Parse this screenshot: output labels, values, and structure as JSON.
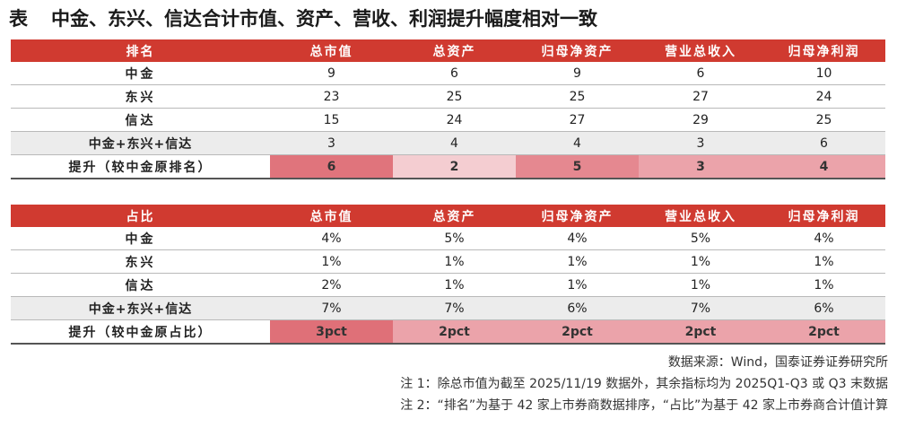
{
  "title": {
    "lead": "表",
    "text": "中金、东兴、信达合计市值、资产、营收、利润提升幅度相对一致"
  },
  "rank_table": {
    "headers": [
      "排名",
      "总市值",
      "总资产",
      "归母净资产",
      "营业总收入",
      "归母净利润"
    ],
    "rows": [
      {
        "label": "中金",
        "values": [
          "9",
          "6",
          "9",
          "6",
          "10"
        ]
      },
      {
        "label": "东兴",
        "values": [
          "23",
          "25",
          "25",
          "27",
          "24"
        ]
      },
      {
        "label": "信达",
        "values": [
          "15",
          "24",
          "27",
          "29",
          "25"
        ]
      },
      {
        "label": "中金+东兴+信达",
        "values": [
          "3",
          "4",
          "4",
          "3",
          "6"
        ]
      }
    ],
    "lift": {
      "label": "提升（较中金原排名）",
      "values": [
        "6",
        "2",
        "5",
        "3",
        "4"
      ],
      "colors": [
        "#e0747c",
        "#f4cdd1",
        "#e58890",
        "#eba3aa",
        "#eba3aa"
      ]
    }
  },
  "share_table": {
    "headers": [
      "占比",
      "总市值",
      "总资产",
      "归母净资产",
      "营业总收入",
      "归母净利润"
    ],
    "rows": [
      {
        "label": "中金",
        "values": [
          "4%",
          "5%",
          "4%",
          "5%",
          "4%"
        ]
      },
      {
        "label": "东兴",
        "values": [
          "1%",
          "1%",
          "1%",
          "1%",
          "1%"
        ]
      },
      {
        "label": "信达",
        "values": [
          "2%",
          "1%",
          "1%",
          "1%",
          "1%"
        ]
      },
      {
        "label": "中金+东兴+信达",
        "values": [
          "7%",
          "7%",
          "6%",
          "7%",
          "6%"
        ]
      }
    ],
    "lift": {
      "label": "提升（较中金原占比）",
      "values": [
        "3pct",
        "2pct",
        "2pct",
        "2pct",
        "2pct"
      ],
      "colors": [
        "#df7078",
        "#eba3aa",
        "#eba3aa",
        "#eba3aa",
        "#eba3aa"
      ]
    }
  },
  "notes": {
    "source": "数据来源：Wind，国泰证券证券研究所",
    "note1": "注 1：除总市值为截至 2025/11/19 数据外，其余指标均为 2025Q1-Q3 或 Q3 末数据",
    "note2": "注 2：“排名”为基于 42 家上市券商数据排序，“占比”为基于 42 家上市券商合计值计算"
  }
}
